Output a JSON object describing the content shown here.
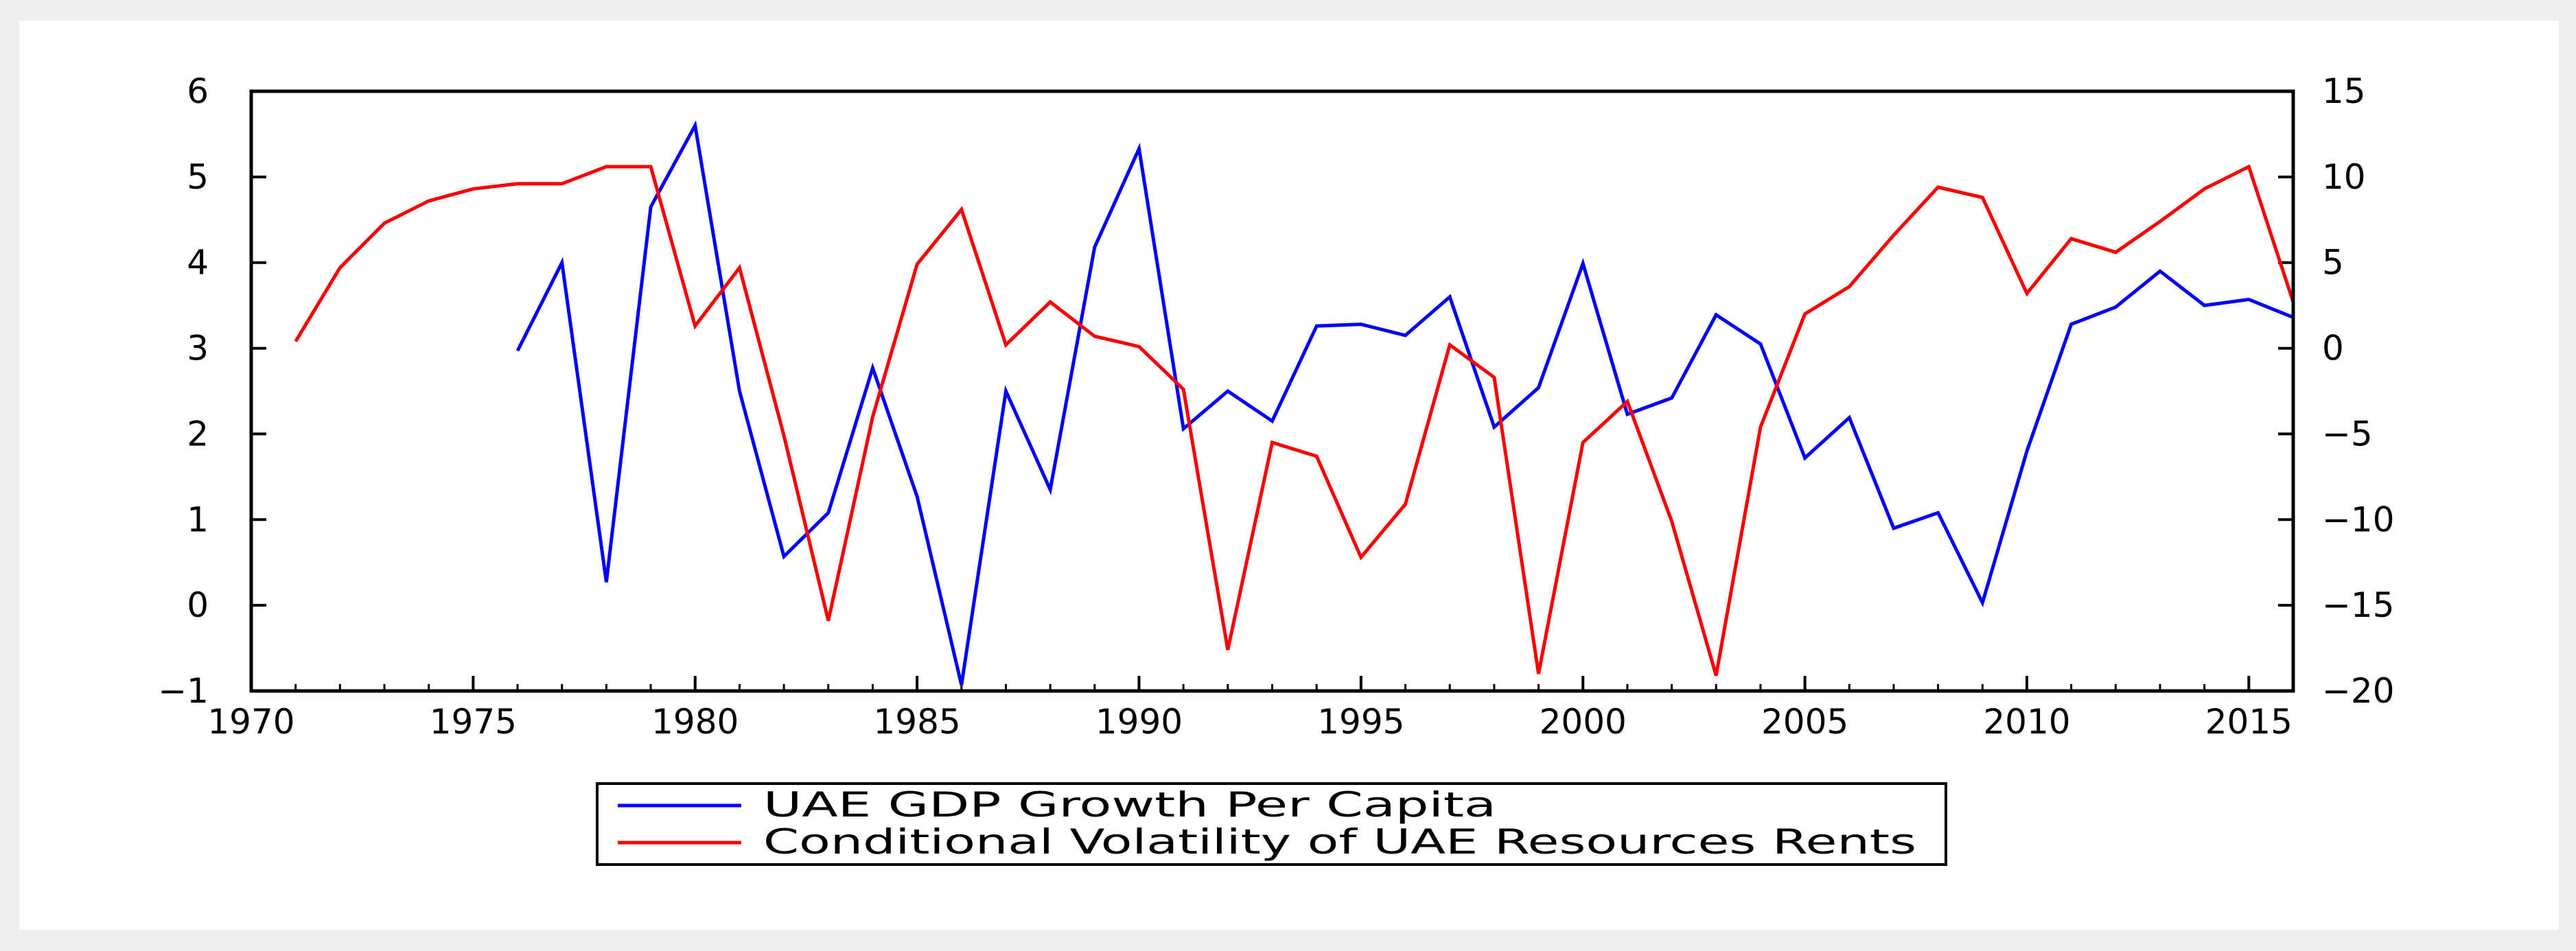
{
  "chart_data": {
    "type": "line",
    "title": "",
    "xlabel": "",
    "ylabel_left": "",
    "ylabel_right": "",
    "xlim": [
      1970,
      2016
    ],
    "x_ticks": [
      1970,
      1975,
      1980,
      1985,
      1990,
      1995,
      2000,
      2005,
      2010,
      2015
    ],
    "ylim_left": [
      -1,
      6
    ],
    "y_ticks_left": [
      -1,
      0,
      1,
      2,
      3,
      4,
      5,
      6
    ],
    "ylim_right": [
      -20,
      15
    ],
    "y_ticks_right": [
      -20,
      -15,
      -10,
      -5,
      0,
      5,
      10,
      15
    ],
    "grid": false,
    "legend_position": "bottom-center",
    "series": [
      {
        "name": "UAE GDP Growth Per Capita",
        "axis": "left",
        "color": "#0000ff",
        "x": [
          1976,
          1977,
          1978,
          1979,
          1980,
          1981,
          1982,
          1983,
          1984,
          1985,
          1986,
          1987,
          1988,
          1989,
          1990,
          1991,
          1992,
          1993,
          1994,
          1995,
          1996,
          1997,
          1998,
          1999,
          2000,
          2001,
          2002,
          2003,
          2004,
          2005,
          2006,
          2007,
          2008,
          2009,
          2010,
          2011,
          2012,
          2013,
          2014,
          2015,
          2016
        ],
        "values": [
          2.97,
          4.0,
          0.27,
          4.65,
          5.6,
          2.5,
          0.57,
          1.08,
          2.77,
          1.27,
          -0.93,
          2.5,
          1.35,
          4.18,
          5.33,
          2.06,
          2.5,
          2.15,
          3.26,
          3.28,
          3.15,
          3.6,
          2.08,
          2.54,
          3.99,
          2.23,
          2.42,
          3.39,
          3.05,
          1.72,
          2.19,
          0.9,
          1.08,
          0.03,
          1.8,
          3.28,
          3.48,
          3.9,
          3.5,
          3.57,
          3.36
        ]
      },
      {
        "name": "Conditional Volatility of UAE Resources Rents",
        "axis": "right",
        "color": "#ff0000",
        "x": [
          1971,
          1972,
          1973,
          1974,
          1975,
          1976,
          1977,
          1978,
          1979,
          1980,
          1981,
          1982,
          1983,
          1984,
          1985,
          1986,
          1987,
          1988,
          1989,
          1990,
          1991,
          1992,
          1993,
          1994,
          1995,
          1996,
          1997,
          1998,
          1999,
          2000,
          2001,
          2002,
          2003,
          2004,
          2005,
          2006,
          2007,
          2008,
          2009,
          2010,
          2011,
          2012,
          2013,
          2014,
          2015,
          2016
        ],
        "values": [
          0.4,
          4.7,
          7.3,
          8.6,
          9.3,
          9.6,
          9.6,
          10.6,
          10.6,
          1.3,
          4.7,
          -5.1,
          -15.9,
          -4.0,
          4.9,
          8.1,
          0.2,
          2.7,
          0.7,
          0.1,
          -2.4,
          -17.6,
          -5.5,
          -6.3,
          -12.2,
          -9.1,
          0.2,
          -1.7,
          -19.0,
          -5.5,
          -3.1,
          -10.1,
          -19.1,
          -4.6,
          2.0,
          3.6,
          6.6,
          9.4,
          8.8,
          3.2,
          6.4,
          5.6,
          7.4,
          9.3,
          10.6,
          2.7
        ]
      }
    ]
  }
}
